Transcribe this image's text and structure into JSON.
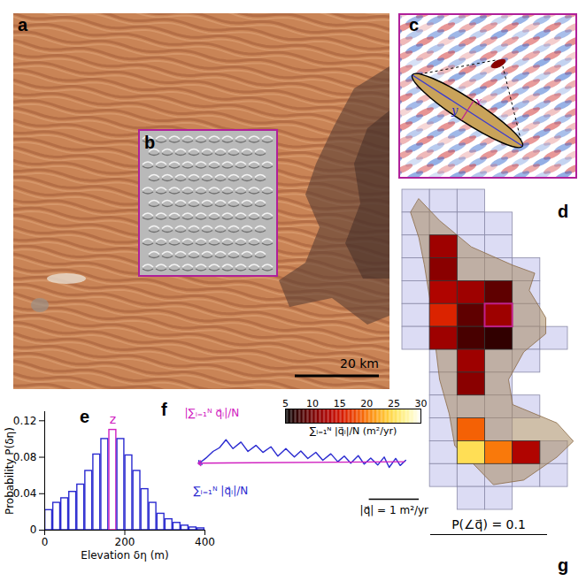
{
  "figure": {
    "panel_labels": [
      "a",
      "b",
      "c",
      "d",
      "e",
      "f",
      "g"
    ],
    "scale_bar": "20 km",
    "ellipse_axes": [
      "x",
      "y"
    ]
  },
  "chart_data": [
    {
      "type": "histogram",
      "xlabel": "Elevation δη (m)",
      "ylabel": "Probability P(δη)",
      "bins": [
        0,
        20,
        40,
        60,
        80,
        100,
        120,
        140,
        160,
        180,
        200,
        220,
        240,
        260,
        280,
        300,
        320,
        340,
        360,
        380,
        400
      ],
      "counts": [
        0.022,
        0.03,
        0.035,
        0.042,
        0.05,
        0.065,
        0.083,
        0.1,
        0.11,
        0.1,
        0.082,
        0.065,
        0.045,
        0.03,
        0.018,
        0.012,
        0.008,
        0.005,
        0.003,
        0.002
      ],
      "colors": [
        "#2a2ad0",
        "#2a2ad0",
        "#2a2ad0",
        "#2a2ad0",
        "#2a2ad0",
        "#2a2ad0",
        "#2a2ad0",
        "#2a2ad0",
        "#d020c0",
        "#2a2ad0",
        "#2a2ad0",
        "#2a2ad0",
        "#2a2ad0",
        "#2a2ad0",
        "#2a2ad0",
        "#2a2ad0",
        "#2a2ad0",
        "#2a2ad0",
        "#2a2ad0",
        "#2a2ad0"
      ],
      "xlim": [
        0,
        400
      ],
      "ylim": [
        0,
        0.13
      ],
      "xticks": [
        0,
        200,
        400
      ],
      "yticks": [
        0,
        0.04,
        0.08,
        0.12
      ],
      "annotations": [
        {
          "text": "z",
          "x": 170,
          "y": 0.121,
          "color": "#d020c0"
        }
      ]
    },
    {
      "type": "heatmap",
      "tick_labels": false,
      "cells": [
        [
          0,
          0,
          null
        ],
        [
          1,
          0,
          null
        ],
        [
          2,
          0,
          null
        ],
        [
          0,
          1,
          null
        ],
        [
          1,
          1,
          null
        ],
        [
          2,
          1,
          null
        ],
        [
          3,
          1,
          null
        ],
        [
          0,
          2,
          null
        ],
        [
          1,
          2,
          12
        ],
        [
          2,
          2,
          null
        ],
        [
          3,
          2,
          null
        ],
        [
          0,
          3,
          null
        ],
        [
          1,
          3,
          11
        ],
        [
          2,
          3,
          null
        ],
        [
          3,
          3,
          null
        ],
        [
          4,
          3,
          null
        ],
        [
          0,
          4,
          null
        ],
        [
          1,
          4,
          13
        ],
        [
          2,
          4,
          12
        ],
        [
          3,
          4,
          9
        ],
        [
          4,
          4,
          null
        ],
        [
          0,
          5,
          null
        ],
        [
          1,
          5,
          16
        ],
        [
          2,
          5,
          9
        ],
        [
          3,
          5,
          12
        ],
        [
          4,
          5,
          null
        ],
        [
          0,
          6,
          null
        ],
        [
          1,
          6,
          12
        ],
        [
          2,
          6,
          8
        ],
        [
          3,
          6,
          7
        ],
        [
          4,
          6,
          null
        ],
        [
          5,
          6,
          null
        ],
        [
          1,
          7,
          null
        ],
        [
          2,
          7,
          12
        ],
        [
          3,
          7,
          null
        ],
        [
          4,
          7,
          null
        ],
        [
          1,
          8,
          null
        ],
        [
          2,
          8,
          11
        ],
        [
          3,
          8,
          null
        ],
        [
          1,
          9,
          null
        ],
        [
          2,
          9,
          null
        ],
        [
          3,
          9,
          null
        ],
        [
          4,
          9,
          null
        ],
        [
          1,
          10,
          null
        ],
        [
          2,
          10,
          19
        ],
        [
          3,
          10,
          null
        ],
        [
          1,
          11,
          null
        ],
        [
          2,
          11,
          25
        ],
        [
          3,
          11,
          20
        ],
        [
          4,
          11,
          13
        ],
        [
          5,
          11,
          null
        ],
        [
          1,
          12,
          null
        ],
        [
          2,
          12,
          null
        ],
        [
          3,
          12,
          null
        ],
        [
          4,
          12,
          null
        ],
        [
          5,
          12,
          null
        ],
        [
          2,
          13,
          null
        ],
        [
          3,
          13,
          null
        ]
      ],
      "contour": [
        [
          0.6,
          0.4
        ],
        [
          1.35,
          1.35
        ],
        [
          2.5,
          2.5
        ],
        [
          4,
          3.3
        ],
        [
          4.8,
          3.65
        ],
        [
          4.6,
          4.4
        ],
        [
          5.2,
          5.6
        ],
        [
          5.2,
          6.3
        ],
        [
          4.4,
          7.1
        ],
        [
          3.85,
          8.3
        ],
        [
          4,
          9.4
        ],
        [
          5.6,
          10.2
        ],
        [
          6.2,
          11
        ],
        [
          5.6,
          11.7
        ],
        [
          4.4,
          12.7
        ],
        [
          3.3,
          12.9
        ],
        [
          2.5,
          11.9
        ],
        [
          1.9,
          11.2
        ],
        [
          1.7,
          9.8
        ],
        [
          1.35,
          8.3
        ],
        [
          1.15,
          6.3
        ],
        [
          1,
          4.8
        ],
        [
          0.8,
          3.3
        ],
        [
          0.6,
          2.1
        ],
        [
          0.3,
          1
        ]
      ],
      "highlight": {
        "col": 3,
        "row": 5,
        "color": "#c0208c"
      },
      "colorbar": {
        "label": "∑ᵢ₌₁ᴺ |q⃗ᵢ|/N (m²/yr)",
        "range": [
          5,
          30
        ],
        "ticks": [
          5,
          10,
          15,
          20,
          25,
          30
        ]
      },
      "annotations": [
        {
          "text": "P(∠q⃗) = 0.1"
        }
      ]
    },
    {
      "type": "line",
      "tick_labels": false,
      "xlim": [
        -4.4,
        0.3
      ],
      "ylim": [
        -0.8,
        0.9
      ],
      "series": [
        {
          "name": "∑ᵢ₌₁ᴺ |q⃗ᵢ|/N",
          "color": "#2a2ad0",
          "marker": "arrow",
          "x": [
            0,
            0.03,
            -0.08,
            -0.17,
            -0.3,
            -0.4,
            -0.53,
            -0.67,
            -0.8,
            -0.92,
            -1.07,
            -1.2,
            -1.33,
            -1.47,
            -1.63,
            -1.77,
            -1.93,
            -2.07,
            -2.2,
            -2.37,
            -2.53,
            -2.67,
            -2.83,
            -2.97,
            -3.13,
            -3.27,
            -3.43,
            -3.57,
            -3.7,
            -3.83,
            -3.97,
            -4.1
          ],
          "y": [
            0,
            0.03,
            -0.08,
            0.07,
            -0.12,
            0.1,
            -0.07,
            0.08,
            -0.05,
            0.13,
            -0.03,
            0.12,
            0,
            0.17,
            0.03,
            0.2,
            0.07,
            0.23,
            0.1,
            0.28,
            0.12,
            0.32,
            0.2,
            0.35,
            0.22,
            0.42,
            0.28,
            0.47,
            0.3,
            0.22,
            0.08,
            -0.03
          ]
        },
        {
          "name": "|∑ᵢ₌₁ᴺ q⃗ᵢ|/N",
          "color": "#d020c0",
          "marker": "arrow",
          "x": [
            0,
            -4.1
          ],
          "y": [
            0,
            -0.03
          ]
        }
      ],
      "scale_bar": {
        "length": 1,
        "label": "|q⃗| = 1 m²/yr"
      }
    }
  ]
}
